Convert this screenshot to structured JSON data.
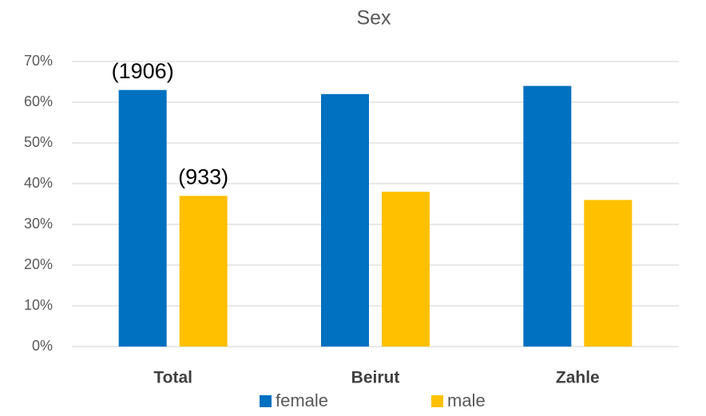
{
  "chart_data": {
    "type": "bar",
    "title": "Sex",
    "categories": [
      "Total",
      "Beirut",
      "Zahle"
    ],
    "series": [
      {
        "name": "female",
        "color": "#0070c0",
        "values": [
          63,
          62,
          64
        ]
      },
      {
        "name": "male",
        "color": "#ffc000",
        "values": [
          37,
          38,
          36
        ]
      }
    ],
    "ylim": [
      0,
      70
    ],
    "yticks": [
      {
        "value": 0,
        "label": "0%"
      },
      {
        "value": 10,
        "label": "10%"
      },
      {
        "value": 20,
        "label": "20%"
      },
      {
        "value": 30,
        "label": "30%"
      },
      {
        "value": 40,
        "label": "40%"
      },
      {
        "value": 50,
        "label": "50%"
      },
      {
        "value": 60,
        "label": "60%"
      },
      {
        "value": 70,
        "label": "70%"
      }
    ],
    "grid": true,
    "legend": "bottom",
    "annotations": [
      {
        "series": "female",
        "category": "Total",
        "text": "(1906)"
      },
      {
        "series": "male",
        "category": "Total",
        "text": "(933)"
      }
    ]
  }
}
